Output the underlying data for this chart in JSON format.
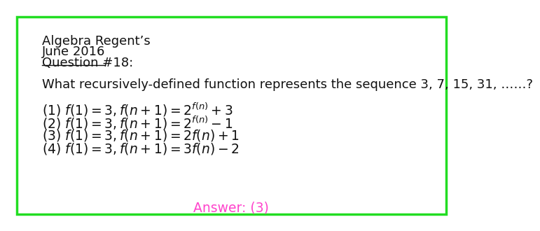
{
  "background_color": "#ffffff",
  "border_color": "#22dd22",
  "border_linewidth": 2.5,
  "header_line1": "Algebra Regent’s",
  "header_line2": "June 2016",
  "header_line3": "Question #18:",
  "question": "What recursively-defined function represents the sequence 3, 7, 15, 31, ……?",
  "choice1": "(1) $f(1) = 3, f(n+1) = 2^{f(n)} + 3$",
  "choice2": "(2) $f(1) = 3, f(n+1) = 2^{f(n)} - 1$",
  "choice3": "(3) $f(1) = 3, f(n+1) = 2f(n) + 1$",
  "choice4": "(4) $f(1) = 3, f(n+1) = 3f(n) - 2$",
  "answer_text": "Answer: (3)",
  "answer_color": "#ff44cc",
  "text_color": "#111111"
}
